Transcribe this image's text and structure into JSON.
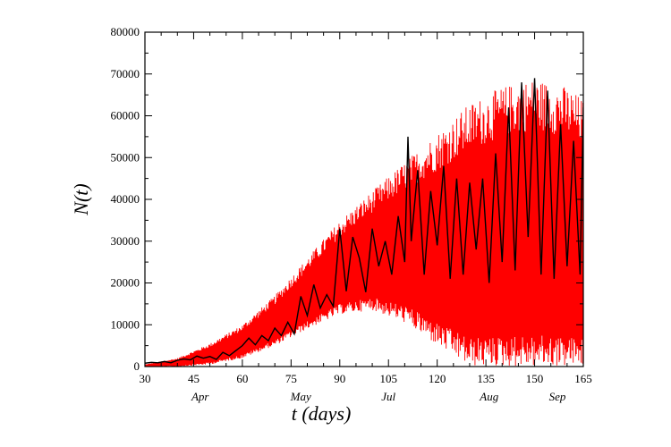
{
  "chart_data": {
    "type": "line",
    "xlabel": "t (days)",
    "ylabel": "N(t)",
    "xlim": [
      30,
      165
    ],
    "ylim": [
      0,
      80000
    ],
    "x_ticks": [
      30,
      45,
      60,
      75,
      90,
      105,
      120,
      135,
      150,
      165
    ],
    "y_ticks": [
      0,
      10000,
      20000,
      30000,
      40000,
      50000,
      60000,
      70000,
      80000
    ],
    "month_labels": [
      {
        "label": "Apr",
        "x": 47
      },
      {
        "label": "May",
        "x": 78
      },
      {
        "label": "Jul",
        "x": 105
      },
      {
        "label": "Aug",
        "x": 136
      },
      {
        "label": "Sep",
        "x": 157
      }
    ],
    "grid": false,
    "series": [
      {
        "color": "#ff0000",
        "style": "dense-oscillation",
        "x": [
          30,
          40,
          50,
          60,
          70,
          80,
          90,
          100,
          110,
          120,
          130,
          140,
          150,
          160,
          165
        ],
        "upper": [
          500,
          2000,
          5500,
          10000,
          17000,
          26000,
          35000,
          42000,
          49000,
          56000,
          63000,
          67000,
          69000,
          67000,
          64000
        ],
        "lower": [
          0,
          0,
          500,
          2000,
          5000,
          9000,
          12500,
          13500,
          10500,
          5000,
          0,
          0,
          0,
          0,
          0
        ]
      },
      {
        "color": "#000000",
        "x": [
          30,
          32,
          34,
          36,
          38,
          40,
          42,
          44,
          46,
          48,
          50,
          52,
          54,
          56,
          58,
          60,
          62,
          64,
          66,
          68,
          70,
          72,
          74,
          76,
          78,
          80,
          82,
          84,
          86,
          88,
          90,
          92,
          94,
          96,
          98,
          100,
          102,
          104,
          106,
          108,
          110,
          111,
          112,
          114,
          116,
          118,
          120,
          122,
          124,
          126,
          128,
          130,
          132,
          134,
          136,
          138,
          140,
          142,
          144,
          146,
          148,
          150,
          152,
          154,
          156,
          158,
          160,
          162,
          164,
          165
        ],
        "y": [
          800,
          1000,
          900,
          1200,
          900,
          1500,
          1800,
          1600,
          2500,
          2000,
          2400,
          1700,
          3400,
          2600,
          3800,
          5000,
          6800,
          5200,
          7400,
          6200,
          9200,
          7400,
          10600,
          7800,
          16800,
          12200,
          19600,
          14000,
          17200,
          14400,
          33000,
          18000,
          31000,
          26000,
          17800,
          33000,
          24000,
          30000,
          22000,
          36000,
          25000,
          55000,
          30000,
          47000,
          22000,
          42000,
          29000,
          48000,
          21000,
          45000,
          22000,
          44000,
          28000,
          45000,
          20000,
          51000,
          25000,
          62000,
          23000,
          68000,
          31000,
          69000,
          22000,
          66000,
          21000,
          58000,
          24000,
          54000,
          22000,
          62000
        ]
      }
    ]
  }
}
